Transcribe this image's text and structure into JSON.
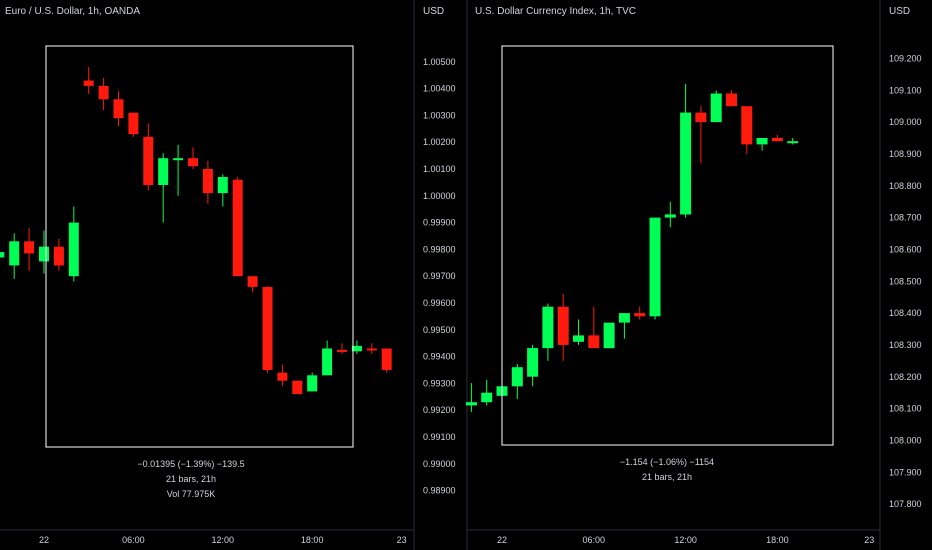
{
  "colors": {
    "background": "#000000",
    "text": "#d1d4dc",
    "up": "#00ff55",
    "down": "#ff1a0d",
    "divider": "#2a2e39",
    "range_box": "#ffffff"
  },
  "chart_data": [
    {
      "type": "candlestick",
      "title": "Euro / U.S. Dollar, 1h, OANDA",
      "currency_label": "USD",
      "y_ticks": [
        "1.00500",
        "1.00400",
        "1.00300",
        "1.00200",
        "1.00100",
        "1.00000",
        "0.99900",
        "0.99800",
        "0.99700",
        "0.99600",
        "0.99500",
        "0.99400",
        "0.99300",
        "0.99200",
        "0.99100",
        "0.99000",
        "0.98900"
      ],
      "ylim": [
        0.9885,
        1.0057
      ],
      "x_labels": [
        "22",
        "06:00",
        "12:00",
        "18:00",
        "23"
      ],
      "x_label_hours": [
        0,
        6,
        12,
        18,
        24
      ],
      "candles": [
        {
          "h": -3,
          "o": 0.9977,
          "hi": 0.9981,
          "lo": 0.9972,
          "c": 0.9979
        },
        {
          "h": -2,
          "o": 0.9974,
          "hi": 0.9986,
          "lo": 0.9969,
          "c": 0.9983
        },
        {
          "h": -1,
          "o": 0.9983,
          "hi": 0.9988,
          "lo": 0.9972,
          "c": 0.99785
        },
        {
          "h": 0,
          "o": 0.99755,
          "hi": 0.9987,
          "lo": 0.9971,
          "c": 0.9981
        },
        {
          "h": 1,
          "o": 0.9981,
          "hi": 0.9984,
          "lo": 0.9972,
          "c": 0.9974
        },
        {
          "h": 2,
          "o": 0.997,
          "hi": 0.9996,
          "lo": 0.9968,
          "c": 0.999
        },
        {
          "h": 3,
          "o": 1.0043,
          "hi": 1.0048,
          "lo": 1.0038,
          "c": 1.0041
        },
        {
          "h": 4,
          "o": 1.0041,
          "hi": 1.0044,
          "lo": 1.0032,
          "c": 1.0036
        },
        {
          "h": 5,
          "o": 1.0036,
          "hi": 1.0039,
          "lo": 1.0026,
          "c": 1.0029
        },
        {
          "h": 6,
          "o": 1.0031,
          "hi": 1.0031,
          "lo": 1.0022,
          "c": 1.0023
        },
        {
          "h": 7,
          "o": 1.0022,
          "hi": 1.0027,
          "lo": 1.0002,
          "c": 1.0004
        },
        {
          "h": 8,
          "o": 1.0004,
          "hi": 1.0016,
          "lo": 0.999,
          "c": 1.0014
        },
        {
          "h": 9,
          "o": 1.0014,
          "hi": 1.0019,
          "lo": 1.0,
          "c": 1.0014
        },
        {
          "h": 10,
          "o": 1.0014,
          "hi": 1.0018,
          "lo": 1.001,
          "c": 1.0011
        },
        {
          "h": 11,
          "o": 1.001,
          "hi": 1.0013,
          "lo": 0.9997,
          "c": 1.0001
        },
        {
          "h": 12,
          "o": 1.0001,
          "hi": 1.0008,
          "lo": 0.9996,
          "c": 1.0007
        },
        {
          "h": 13,
          "o": 1.0006,
          "hi": 1.0007,
          "lo": 0.997,
          "c": 0.997
        },
        {
          "h": 14,
          "o": 0.997,
          "hi": 0.9969,
          "lo": 0.9964,
          "c": 0.9966
        },
        {
          "h": 15,
          "o": 0.9966,
          "hi": 0.9966,
          "lo": 0.9934,
          "c": 0.9935
        },
        {
          "h": 16,
          "o": 0.9934,
          "hi": 0.9937,
          "lo": 0.9929,
          "c": 0.9931
        },
        {
          "h": 17,
          "o": 0.9931,
          "hi": 0.9931,
          "lo": 0.9927,
          "c": 0.9926
        },
        {
          "h": 18,
          "o": 0.9927,
          "hi": 0.9934,
          "lo": 0.9927,
          "c": 0.9933
        },
        {
          "h": 19,
          "o": 0.9933,
          "hi": 0.9946,
          "lo": 0.9933,
          "c": 0.9943
        },
        {
          "h": 20,
          "o": 0.99425,
          "hi": 0.9945,
          "lo": 0.9941,
          "c": 0.9942
        },
        {
          "h": 21,
          "o": 0.9942,
          "hi": 0.9946,
          "lo": 0.9941,
          "c": 0.9944
        },
        {
          "h": 22,
          "o": 0.9943,
          "hi": 0.9945,
          "lo": 0.9941,
          "c": 0.99425
        },
        {
          "h": 23,
          "o": 0.9943,
          "hi": 0.9943,
          "lo": 0.9934,
          "c": 0.9935
        }
      ],
      "measure": {
        "change": "−0.01395 (−1.39%) −139.5",
        "bars": "21 bars, 21h",
        "volume": "Vol 77.975K"
      }
    },
    {
      "type": "candlestick",
      "title": "U.S. Dollar Currency Index, 1h, TVC",
      "currency_label": "USD",
      "y_ticks": [
        "109.200",
        "109.100",
        "109.000",
        "108.900",
        "108.800",
        "108.700",
        "108.600",
        "108.500",
        "108.400",
        "108.300",
        "108.200",
        "108.100",
        "108.000",
        "107.900",
        "107.800"
      ],
      "ylim": [
        107.75,
        109.28
      ],
      "x_labels": [
        "22",
        "06:00",
        "12:00",
        "18:00",
        "23"
      ],
      "x_label_hours": [
        0,
        6,
        12,
        18,
        24
      ],
      "candles": [
        {
          "h": -2,
          "o": 108.11,
          "hi": 108.18,
          "lo": 108.09,
          "c": 108.12
        },
        {
          "h": -1,
          "o": 108.12,
          "hi": 108.19,
          "lo": 108.11,
          "c": 108.15
        },
        {
          "h": 0,
          "o": 108.14,
          "hi": 108.19,
          "lo": 108.13,
          "c": 108.17
        },
        {
          "h": 1,
          "o": 108.17,
          "hi": 108.24,
          "lo": 108.13,
          "c": 108.23
        },
        {
          "h": 2,
          "o": 108.2,
          "hi": 108.3,
          "lo": 108.17,
          "c": 108.29
        },
        {
          "h": 3,
          "o": 108.29,
          "hi": 108.43,
          "lo": 108.25,
          "c": 108.42
        },
        {
          "h": 4,
          "o": 108.42,
          "hi": 108.46,
          "lo": 108.25,
          "c": 108.3
        },
        {
          "h": 5,
          "o": 108.31,
          "hi": 108.38,
          "lo": 108.3,
          "c": 108.33
        },
        {
          "h": 6,
          "o": 108.33,
          "hi": 108.42,
          "lo": 108.29,
          "c": 108.29
        },
        {
          "h": 7,
          "o": 108.29,
          "hi": 108.37,
          "lo": 108.29,
          "c": 108.37
        },
        {
          "h": 8,
          "o": 108.37,
          "hi": 108.4,
          "lo": 108.32,
          "c": 108.4
        },
        {
          "h": 9,
          "o": 108.4,
          "hi": 108.42,
          "lo": 108.38,
          "c": 108.39
        },
        {
          "h": 10,
          "o": 108.39,
          "hi": 108.7,
          "lo": 108.38,
          "c": 108.7
        },
        {
          "h": 11,
          "o": 108.7,
          "hi": 108.75,
          "lo": 108.67,
          "c": 108.71
        },
        {
          "h": 12,
          "o": 108.71,
          "hi": 109.12,
          "lo": 108.7,
          "c": 109.03
        },
        {
          "h": 13,
          "o": 109.03,
          "hi": 109.05,
          "lo": 108.87,
          "c": 109.0
        },
        {
          "h": 14,
          "o": 109.0,
          "hi": 109.1,
          "lo": 109.0,
          "c": 109.09
        },
        {
          "h": 15,
          "o": 109.09,
          "hi": 109.1,
          "lo": 109.05,
          "c": 109.05
        },
        {
          "h": 16,
          "o": 109.05,
          "hi": 109.05,
          "lo": 108.9,
          "c": 108.93
        },
        {
          "h": 17,
          "o": 108.93,
          "hi": 108.95,
          "lo": 108.91,
          "c": 108.95
        },
        {
          "h": 18,
          "o": 108.95,
          "hi": 108.96,
          "lo": 108.94,
          "c": 108.94
        },
        {
          "h": 19,
          "o": 108.94,
          "hi": 108.95,
          "lo": 108.93,
          "c": 108.94
        }
      ],
      "measure": {
        "change": "−1.154 (−1.06%) −1154",
        "bars": "21 bars, 21h"
      }
    }
  ]
}
